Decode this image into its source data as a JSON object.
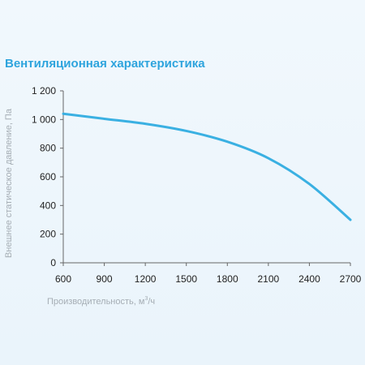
{
  "chart_data": {
    "type": "line",
    "title": "Вентиляционная характеристика",
    "xlabel_prefix": "Производительность, м",
    "xlabel_sup": "3",
    "xlabel_suffix": "/ч",
    "ylabel": "Внешнее статическое давление, Па",
    "xlim": [
      600,
      2700
    ],
    "ylim": [
      0,
      1200
    ],
    "x_ticks": [
      600,
      900,
      1200,
      1500,
      1800,
      2100,
      2400,
      2700
    ],
    "x_tick_labels": [
      "600",
      "900",
      "1200",
      "1500",
      "1800",
      "2100",
      "2400",
      "2700"
    ],
    "y_ticks": [
      0,
      200,
      400,
      600,
      800,
      1000,
      1200
    ],
    "y_tick_labels": [
      "0",
      "200",
      "400",
      "600",
      "800",
      "1 000",
      "1 200"
    ],
    "grid": false,
    "colors": {
      "line": "#3ab0e2",
      "title": "#2ea4dd",
      "axis": "#666666"
    },
    "series": [
      {
        "x": [
          600,
          900,
          1200,
          1500,
          1800,
          2100,
          2400,
          2700
        ],
        "values": [
          1040,
          1005,
          970,
          920,
          845,
          730,
          550,
          300
        ]
      }
    ]
  }
}
